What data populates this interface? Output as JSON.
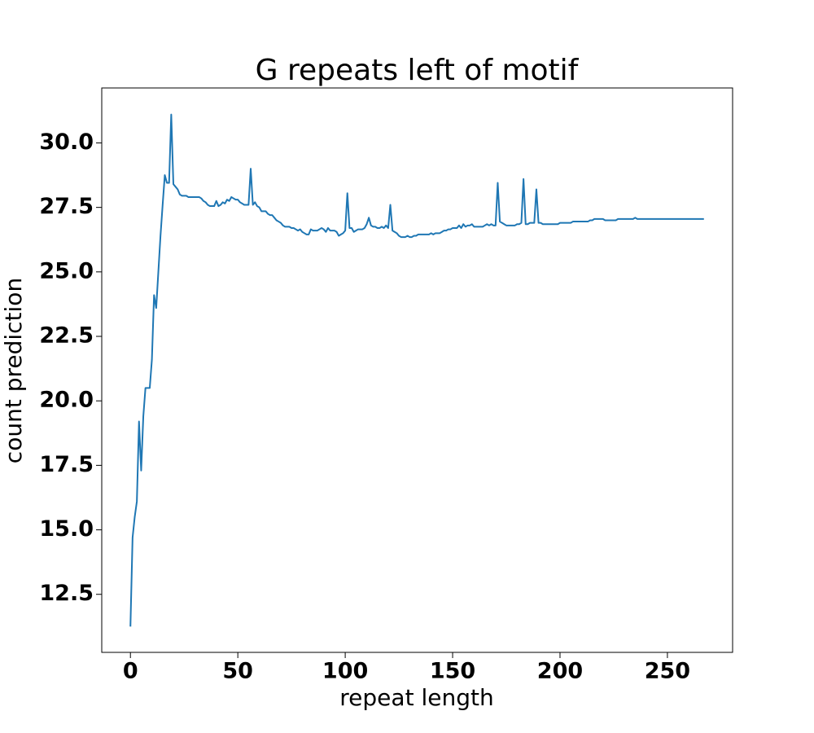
{
  "chart_data": {
    "type": "line",
    "title": "G repeats left of motif",
    "x_label": "repeat length",
    "y_label": "count prediction",
    "xlim": [
      -13.35,
      280.35
    ],
    "ylim": [
      10.25,
      32.13
    ],
    "xticks": [
      0,
      50,
      100,
      150,
      200,
      250
    ],
    "yticks": [
      12.5,
      {
        "value": 15,
        "label": "15.0"
      },
      17.5,
      {
        "value": 20,
        "label": "20.0"
      },
      22.5,
      {
        "value": 25,
        "label": "25.0"
      },
      27.5,
      {
        "value": 30,
        "label": "30.0"
      }
    ],
    "grid": false,
    "x": [
      0,
      1,
      2,
      3,
      4,
      5,
      6,
      7,
      8,
      9,
      10,
      11,
      12,
      13,
      14,
      15,
      16,
      17,
      18,
      19,
      20,
      21,
      22,
      23,
      24,
      25,
      26,
      27,
      28,
      29,
      30,
      31,
      32,
      33,
      34,
      35,
      36,
      37,
      38,
      39,
      40,
      41,
      42,
      43,
      44,
      45,
      46,
      47,
      48,
      49,
      50,
      51,
      52,
      53,
      54,
      55,
      56,
      57,
      58,
      59,
      60,
      61,
      62,
      63,
      64,
      65,
      66,
      67,
      68,
      69,
      70,
      71,
      72,
      73,
      74,
      75,
      76,
      77,
      78,
      79,
      80,
      81,
      82,
      83,
      84,
      85,
      86,
      87,
      88,
      89,
      90,
      91,
      92,
      93,
      94,
      95,
      96,
      97,
      98,
      99,
      100,
      101,
      102,
      103,
      104,
      105,
      106,
      107,
      108,
      109,
      110,
      111,
      112,
      113,
      114,
      115,
      116,
      117,
      118,
      119,
      120,
      121,
      122,
      123,
      124,
      125,
      126,
      127,
      128,
      129,
      130,
      131,
      132,
      133,
      134,
      135,
      136,
      137,
      138,
      139,
      140,
      141,
      142,
      143,
      144,
      145,
      146,
      147,
      148,
      149,
      150,
      151,
      152,
      153,
      154,
      155,
      156,
      157,
      158,
      159,
      160,
      161,
      162,
      163,
      164,
      165,
      166,
      167,
      168,
      169,
      170,
      171,
      172,
      173,
      174,
      175,
      176,
      177,
      178,
      179,
      180,
      181,
      182,
      183,
      184,
      185,
      186,
      187,
      188,
      189,
      190,
      191,
      192,
      193,
      194,
      195,
      196,
      197,
      198,
      199,
      200,
      201,
      202,
      203,
      204,
      205,
      206,
      207,
      208,
      209,
      210,
      211,
      212,
      213,
      214,
      215,
      216,
      217,
      218,
      219,
      220,
      221,
      222,
      223,
      224,
      225,
      226,
      227,
      228,
      229,
      230,
      231,
      232,
      233,
      234,
      235,
      236,
      237,
      238,
      239,
      240,
      241,
      242,
      243,
      244,
      245,
      246,
      247,
      248,
      249,
      250,
      251,
      252,
      253,
      254,
      255,
      256,
      257,
      258,
      259,
      260,
      261,
      262,
      263,
      264,
      265,
      266,
      267
    ],
    "series": [
      {
        "color": "#1f77b4",
        "values": [
          11.25,
          14.7,
          15.5,
          16.1,
          19.2,
          17.3,
          19.4,
          20.5,
          20.5,
          20.5,
          21.6,
          24.1,
          23.6,
          25.0,
          26.4,
          27.6,
          28.75,
          28.45,
          28.45,
          31.1,
          28.4,
          28.3,
          28.2,
          28.0,
          27.95,
          27.95,
          27.95,
          27.9,
          27.9,
          27.9,
          27.9,
          27.9,
          27.9,
          27.85,
          27.75,
          27.7,
          27.6,
          27.55,
          27.55,
          27.55,
          27.75,
          27.55,
          27.6,
          27.7,
          27.65,
          27.8,
          27.75,
          27.9,
          27.85,
          27.8,
          27.8,
          27.7,
          27.65,
          27.6,
          27.6,
          27.6,
          29.0,
          27.6,
          27.7,
          27.55,
          27.5,
          27.35,
          27.35,
          27.35,
          27.25,
          27.2,
          27.2,
          27.1,
          27.0,
          26.95,
          26.9,
          26.8,
          26.75,
          26.75,
          26.75,
          26.7,
          26.7,
          26.65,
          26.6,
          26.65,
          26.55,
          26.5,
          26.45,
          26.45,
          26.65,
          26.6,
          26.6,
          26.6,
          26.65,
          26.7,
          26.65,
          26.55,
          26.7,
          26.6,
          26.6,
          26.6,
          26.55,
          26.4,
          26.45,
          26.5,
          26.6,
          28.05,
          26.7,
          26.7,
          26.55,
          26.6,
          26.65,
          26.65,
          26.65,
          26.7,
          26.85,
          27.1,
          26.8,
          26.75,
          26.75,
          26.7,
          26.7,
          26.75,
          26.7,
          26.8,
          26.7,
          27.6,
          26.6,
          26.55,
          26.5,
          26.4,
          26.35,
          26.35,
          26.35,
          26.4,
          26.35,
          26.35,
          26.4,
          26.4,
          26.45,
          26.45,
          26.45,
          26.45,
          26.45,
          26.45,
          26.5,
          26.45,
          26.5,
          26.5,
          26.5,
          26.55,
          26.6,
          26.6,
          26.65,
          26.65,
          26.7,
          26.7,
          26.7,
          26.8,
          26.7,
          26.85,
          26.75,
          26.8,
          26.8,
          26.85,
          26.75,
          26.75,
          26.75,
          26.75,
          26.75,
          26.8,
          26.85,
          26.8,
          26.85,
          26.8,
          26.8,
          28.45,
          26.95,
          26.9,
          26.85,
          26.8,
          26.8,
          26.8,
          26.8,
          26.8,
          26.85,
          26.85,
          26.9,
          28.6,
          26.85,
          26.85,
          26.9,
          26.9,
          26.9,
          28.2,
          26.9,
          26.9,
          26.85,
          26.85,
          26.85,
          26.85,
          26.85,
          26.85,
          26.85,
          26.85,
          26.9,
          26.9,
          26.9,
          26.9,
          26.9,
          26.9,
          26.95,
          26.95,
          26.95,
          26.95,
          26.95,
          26.95,
          26.95,
          26.95,
          27.0,
          27.0,
          27.05,
          27.05,
          27.05,
          27.05,
          27.05,
          27.0,
          27.0,
          27.0,
          27.0,
          27.0,
          27.0,
          27.05,
          27.05,
          27.05,
          27.05,
          27.05,
          27.05,
          27.05,
          27.05,
          27.1,
          27.05,
          27.05,
          27.05,
          27.05,
          27.05,
          27.05,
          27.05,
          27.05,
          27.05,
          27.05,
          27.05,
          27.05,
          27.05,
          27.05,
          27.05,
          27.05,
          27.05,
          27.05,
          27.05,
          27.05,
          27.05,
          27.05,
          27.05,
          27.05,
          27.05,
          27.05,
          27.05,
          27.05,
          27.05,
          27.05,
          27.05,
          27.05
        ]
      }
    ]
  }
}
